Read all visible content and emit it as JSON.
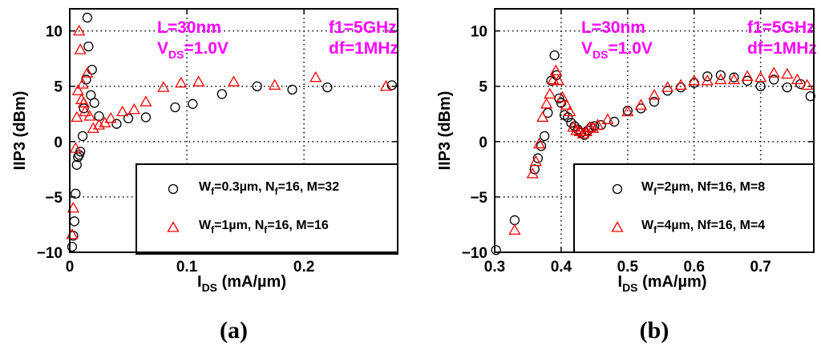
{
  "chart_data": [
    {
      "type": "scatter",
      "panel_label": "a",
      "xlabel": "I",
      "xlabel_sub": "DS",
      "xlabel_rest": " (mA/µm)",
      "ylabel": "IIP3 (dBm)",
      "xlim": [
        0,
        0.28
      ],
      "ylim": [
        -10,
        12
      ],
      "xticks": [
        0,
        0.1,
        0.2
      ],
      "xtick_labels": [
        "0",
        "0.1",
        "0.2"
      ],
      "yticks": [
        -10,
        -5,
        0,
        5,
        10
      ],
      "ytick_labels": [
        "−10",
        "−5",
        "0",
        "5",
        "10"
      ],
      "grid": true,
      "legend_position": "bottom-right",
      "annotations": {
        "length": "L=30nm",
        "vds_main": "V",
        "vds_sub": "DS",
        "vds_rest": "=1.0V",
        "f1": "f1=5GHz",
        "df": "df=1MHz"
      },
      "series": [
        {
          "marker": "circle",
          "color": "#000000",
          "legend_parts": [
            "W",
            "f",
            "=0.3µm, N",
            "f",
            "=16, M=32"
          ],
          "points": [
            [
              0.002,
              -9.5
            ],
            [
              0.003,
              -8.5
            ],
            [
              0.004,
              -7.2
            ],
            [
              0.005,
              -4.7
            ],
            [
              0.006,
              -2.1
            ],
            [
              0.007,
              -1.4
            ],
            [
              0.008,
              -1.2
            ],
            [
              0.009,
              -0.9
            ],
            [
              0.011,
              0.5
            ],
            [
              0.012,
              3.0
            ],
            [
              0.014,
              5.6
            ],
            [
              0.015,
              11.2
            ],
            [
              0.016,
              8.6
            ],
            [
              0.018,
              4.2
            ],
            [
              0.019,
              6.5
            ],
            [
              0.021,
              3.5
            ],
            [
              0.025,
              2.3
            ],
            [
              0.04,
              1.6
            ],
            [
              0.05,
              2.1
            ],
            [
              0.065,
              2.2
            ],
            [
              0.09,
              3.1
            ],
            [
              0.105,
              3.4
            ],
            [
              0.13,
              4.3
            ],
            [
              0.16,
              5.0
            ],
            [
              0.19,
              4.7
            ],
            [
              0.22,
              4.9
            ],
            [
              0.275,
              5.1
            ]
          ]
        },
        {
          "marker": "triangle",
          "color": "#ff0000",
          "legend_parts": [
            "W",
            "f",
            "=1µm, N",
            "f",
            "=16, M=16"
          ],
          "points": [
            [
              0.002,
              -8.4
            ],
            [
              0.003,
              -6.0
            ],
            [
              0.005,
              -0.6
            ],
            [
              0.006,
              2.2
            ],
            [
              0.007,
              4.6
            ],
            [
              0.008,
              10.0
            ],
            [
              0.009,
              8.3
            ],
            [
              0.01,
              3.8
            ],
            [
              0.011,
              5.2
            ],
            [
              0.012,
              3.5
            ],
            [
              0.013,
              2.7
            ],
            [
              0.015,
              6.2
            ],
            [
              0.017,
              2.3
            ],
            [
              0.02,
              1.2
            ],
            [
              0.025,
              1.5
            ],
            [
              0.03,
              1.7
            ],
            [
              0.035,
              2.1
            ],
            [
              0.045,
              2.7
            ],
            [
              0.055,
              2.9
            ],
            [
              0.065,
              3.6
            ],
            [
              0.08,
              4.9
            ],
            [
              0.095,
              5.3
            ],
            [
              0.11,
              5.4
            ],
            [
              0.14,
              5.4
            ],
            [
              0.175,
              5.1
            ],
            [
              0.21,
              5.8
            ],
            [
              0.27,
              5.0
            ]
          ]
        }
      ]
    },
    {
      "type": "scatter",
      "panel_label": "b",
      "xlabel": "I",
      "xlabel_sub": "DS",
      "xlabel_rest": " (mA/µm)",
      "ylabel": "IIP3 (dBm)",
      "xlim": [
        0.3,
        0.78
      ],
      "ylim": [
        -10,
        12
      ],
      "xticks": [
        0.3,
        0.4,
        0.5,
        0.6,
        0.7
      ],
      "xtick_labels": [
        "0.3",
        "0.4",
        "0.5",
        "0.6",
        "0.7"
      ],
      "yticks": [
        -10,
        -5,
        0,
        5,
        10
      ],
      "ytick_labels": [
        "−10",
        "−5",
        "0",
        "5",
        "10"
      ],
      "grid": true,
      "legend_position": "bottom-right",
      "annotations": {
        "length": "L=30nm",
        "vds_main": "V",
        "vds_sub": "DS",
        "vds_rest": "=1.0V",
        "f1": "f1=5GHz",
        "df": "df=1MHz"
      },
      "series": [
        {
          "marker": "circle",
          "color": "#000000",
          "legend_parts": [
            "W",
            "f",
            "=2µm, Nf=16, M=8"
          ],
          "points": [
            [
              0.302,
              -9.8
            ],
            [
              0.33,
              -7.1
            ],
            [
              0.36,
              -2.5
            ],
            [
              0.365,
              -1.5
            ],
            [
              0.37,
              -0.4
            ],
            [
              0.375,
              0.5
            ],
            [
              0.38,
              2.6
            ],
            [
              0.385,
              5.5
            ],
            [
              0.39,
              7.8
            ],
            [
              0.393,
              6.0
            ],
            [
              0.397,
              3.9
            ],
            [
              0.4,
              3.5
            ],
            [
              0.405,
              2.4
            ],
            [
              0.41,
              2.2
            ],
            [
              0.415,
              1.7
            ],
            [
              0.42,
              1.4
            ],
            [
              0.425,
              1.1
            ],
            [
              0.43,
              0.8
            ],
            [
              0.435,
              0.6
            ],
            [
              0.44,
              1.0
            ],
            [
              0.445,
              1.3
            ],
            [
              0.45,
              1.4
            ],
            [
              0.46,
              1.5
            ],
            [
              0.48,
              1.8
            ],
            [
              0.5,
              2.8
            ],
            [
              0.52,
              3.0
            ],
            [
              0.54,
              3.6
            ],
            [
              0.56,
              4.6
            ],
            [
              0.58,
              4.9
            ],
            [
              0.6,
              5.3
            ],
            [
              0.62,
              5.9
            ],
            [
              0.64,
              6.0
            ],
            [
              0.66,
              5.8
            ],
            [
              0.68,
              5.5
            ],
            [
              0.7,
              5.0
            ],
            [
              0.72,
              5.6
            ],
            [
              0.74,
              4.9
            ],
            [
              0.76,
              5.2
            ],
            [
              0.775,
              4.1
            ]
          ]
        },
        {
          "marker": "triangle",
          "color": "#ff0000",
          "legend_parts": [
            "W",
            "f",
            "=4µm, Nf=16, M=4"
          ],
          "points": [
            [
              0.33,
              -8.0
            ],
            [
              0.357,
              -2.9
            ],
            [
              0.362,
              -1.8
            ],
            [
              0.367,
              -0.2
            ],
            [
              0.372,
              2.2
            ],
            [
              0.378,
              3.4
            ],
            [
              0.383,
              4.3
            ],
            [
              0.388,
              5.6
            ],
            [
              0.392,
              6.4
            ],
            [
              0.396,
              5.5
            ],
            [
              0.402,
              4.0
            ],
            [
              0.408,
              3.3
            ],
            [
              0.413,
              2.7
            ],
            [
              0.418,
              1.3
            ],
            [
              0.423,
              1.0
            ],
            [
              0.428,
              0.9
            ],
            [
              0.433,
              0.7
            ],
            [
              0.438,
              0.9
            ],
            [
              0.443,
              1.3
            ],
            [
              0.448,
              1.2
            ],
            [
              0.455,
              1.5
            ],
            [
              0.47,
              2.0
            ],
            [
              0.5,
              2.7
            ],
            [
              0.52,
              3.3
            ],
            [
              0.54,
              4.2
            ],
            [
              0.56,
              4.9
            ],
            [
              0.58,
              5.1
            ],
            [
              0.6,
              5.5
            ],
            [
              0.62,
              5.5
            ],
            [
              0.64,
              5.6
            ],
            [
              0.66,
              5.6
            ],
            [
              0.68,
              5.9
            ],
            [
              0.7,
              5.8
            ],
            [
              0.72,
              6.2
            ],
            [
              0.74,
              6.1
            ],
            [
              0.755,
              5.6
            ],
            [
              0.77,
              5.1
            ]
          ]
        }
      ]
    }
  ]
}
